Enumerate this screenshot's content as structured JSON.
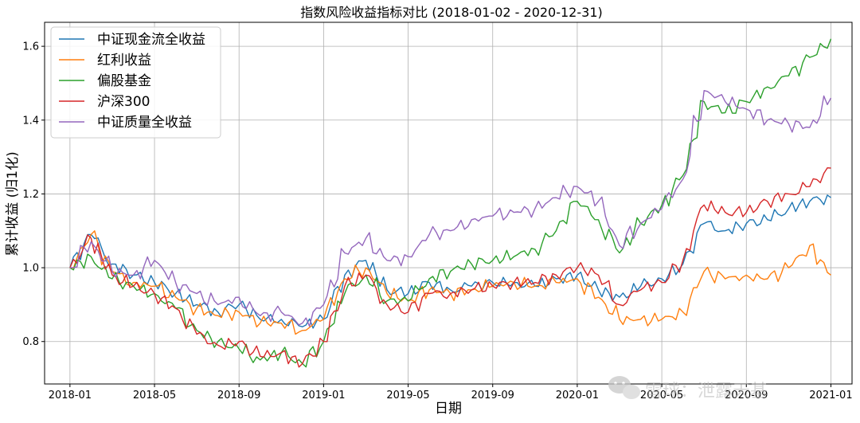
{
  "chart_data": {
    "type": "line",
    "title": "指数风险收益指标对比 (2018-01-02 - 2020-12-31)",
    "xlabel": "日期",
    "ylabel": "累计收益 (归1化)",
    "xticks": [
      "2018-01",
      "2018-05",
      "2018-09",
      "2019-01",
      "2019-05",
      "2019-09",
      "2020-01",
      "2020-05",
      "2020-09",
      "2021-01"
    ],
    "yticks": [
      "0.8",
      "1.0",
      "1.2",
      "1.4",
      "1.6"
    ],
    "xlim_month_index": [
      -1.2,
      37.0
    ],
    "ylim": [
      0.685,
      1.665
    ],
    "grid": true,
    "legend_position": "upper-left",
    "x": [
      "2018-01",
      "2018-02",
      "2018-03",
      "2018-04",
      "2018-05",
      "2018-06",
      "2018-07",
      "2018-08",
      "2018-09",
      "2018-10",
      "2018-11",
      "2018-12",
      "2019-01",
      "2019-02",
      "2019-03",
      "2019-04",
      "2019-05",
      "2019-06",
      "2019-07",
      "2019-08",
      "2019-09",
      "2019-10",
      "2019-11",
      "2019-12",
      "2020-01",
      "2020-02",
      "2020-03",
      "2020-04",
      "2020-05",
      "2020-06",
      "2020-07",
      "2020-08",
      "2020-09",
      "2020-10",
      "2020-11",
      "2020-12",
      "2020-12-31"
    ],
    "series": [
      {
        "name": "中证现金流全收益",
        "color": "#1f77b4",
        "values": [
          1.0,
          1.09,
          1.01,
          0.98,
          0.96,
          0.93,
          0.9,
          0.88,
          0.9,
          0.86,
          0.86,
          0.84,
          0.86,
          0.98,
          1.02,
          0.94,
          0.93,
          0.96,
          0.94,
          0.95,
          0.96,
          0.96,
          0.95,
          0.97,
          0.98,
          0.94,
          0.92,
          0.95,
          0.97,
          1.01,
          1.12,
          1.1,
          1.12,
          1.13,
          1.16,
          1.18,
          1.19
        ]
      },
      {
        "name": "红利收益",
        "color": "#ff7f0e",
        "values": [
          1.0,
          1.09,
          0.99,
          0.96,
          0.95,
          0.92,
          0.89,
          0.87,
          0.88,
          0.85,
          0.85,
          0.83,
          0.86,
          0.97,
          1.0,
          0.93,
          0.91,
          0.94,
          0.93,
          0.94,
          0.95,
          0.96,
          0.95,
          0.96,
          0.97,
          0.92,
          0.86,
          0.86,
          0.86,
          0.88,
          0.99,
          0.97,
          0.98,
          0.97,
          1.0,
          1.06,
          0.98
        ]
      },
      {
        "name": "偏股基金",
        "color": "#2ca02c",
        "values": [
          1.0,
          1.03,
          0.97,
          0.95,
          0.93,
          0.89,
          0.83,
          0.8,
          0.78,
          0.75,
          0.77,
          0.74,
          0.8,
          0.93,
          0.98,
          0.91,
          0.91,
          0.97,
          0.99,
          1.01,
          1.02,
          1.03,
          1.05,
          1.1,
          1.18,
          1.13,
          1.04,
          1.12,
          1.17,
          1.25,
          1.45,
          1.42,
          1.45,
          1.49,
          1.52,
          1.57,
          1.62
        ]
      },
      {
        "name": "沪深300",
        "color": "#d62728",
        "values": [
          1.0,
          1.08,
          0.98,
          0.95,
          0.93,
          0.89,
          0.82,
          0.79,
          0.8,
          0.76,
          0.77,
          0.74,
          0.8,
          0.95,
          0.98,
          0.9,
          0.88,
          0.93,
          0.93,
          0.94,
          0.95,
          0.96,
          0.96,
          0.98,
          1.0,
          0.98,
          0.9,
          0.94,
          0.96,
          1.02,
          1.17,
          1.15,
          1.15,
          1.18,
          1.2,
          1.22,
          1.27
        ]
      },
      {
        "name": "中证质量全收益",
        "color": "#9467bd",
        "values": [
          1.0,
          1.07,
          0.99,
          0.98,
          1.02,
          0.96,
          0.93,
          0.9,
          0.92,
          0.87,
          0.88,
          0.85,
          0.9,
          1.04,
          1.08,
          1.02,
          1.03,
          1.09,
          1.1,
          1.13,
          1.14,
          1.15,
          1.16,
          1.19,
          1.22,
          1.18,
          1.06,
          1.12,
          1.16,
          1.24,
          1.48,
          1.45,
          1.43,
          1.4,
          1.39,
          1.38,
          1.46
        ]
      }
    ]
  },
  "watermark": {
    "text": "雪球：泄露天基",
    "icon": "wechat-icon"
  }
}
